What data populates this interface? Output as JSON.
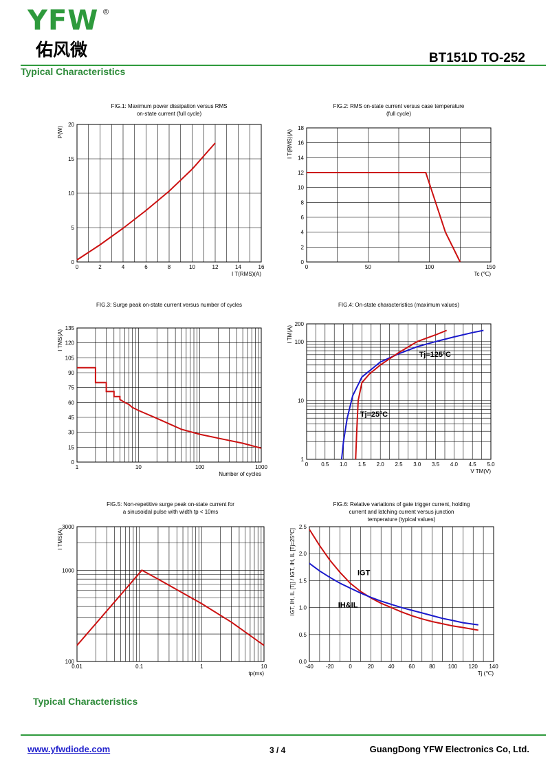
{
  "header": {
    "logo": "YFW",
    "logo_registered": "®",
    "logo_cn": "佑风微",
    "part_number": "BT151D TO-252",
    "section_title": "Typical Characteristics"
  },
  "footer": {
    "section_title": "Typical Characteristics",
    "url": "www.yfwdiode.com",
    "page": "3 / 4",
    "company": "GuangDong YFW Electronics Co, Ltd."
  },
  "colors": {
    "green": "#2e9a3c",
    "red": "#cc1111",
    "blue": "#1a1acc"
  },
  "chart_data": [
    {
      "id": "fig1",
      "type": "line",
      "title": [
        "FIG.1: Maximum power dissipation versus RMS",
        "on-state current (full cycle)"
      ],
      "xlabel": "I T(RMS)(A)",
      "ylabel": "P(W)",
      "xlim": [
        0,
        16
      ],
      "ylim": [
        0,
        20
      ],
      "xticks": [
        0,
        2,
        4,
        6,
        8,
        10,
        12,
        14,
        16
      ],
      "yticks": [
        0,
        5,
        10,
        15,
        20
      ],
      "grid": true,
      "series": [
        {
          "color": "red",
          "x": [
            0,
            2,
            4,
            6,
            8,
            10,
            12
          ],
          "y": [
            0.3,
            2.5,
            4.9,
            7.5,
            10.3,
            13.5,
            17.3
          ]
        }
      ]
    },
    {
      "id": "fig2",
      "type": "line",
      "title": [
        "FIG.2: RMS on-state current versus case temperature",
        "(full cycle)"
      ],
      "xlabel": "Tc (℃)",
      "ylabel": "I T(RMS)(A)",
      "xlim": [
        0,
        150
      ],
      "ylim": [
        0,
        18
      ],
      "xticks": [
        0,
        50,
        100,
        150
      ],
      "yticks": [
        0,
        2,
        4,
        6,
        8,
        10,
        12,
        14,
        16,
        18
      ],
      "grid": true,
      "series": [
        {
          "color": "red",
          "x": [
            0,
            97,
            105,
            113,
            125
          ],
          "y": [
            12,
            12,
            8,
            4,
            0
          ]
        }
      ]
    },
    {
      "id": "fig3",
      "type": "line",
      "title": [
        "FIG.3: Surge peak on-state current versus number of cycles"
      ],
      "xlabel": "Number of cycles",
      "ylabel": "I TMS(A)",
      "xscale": "log",
      "xlim": [
        1,
        1000
      ],
      "ylim": [
        0,
        135
      ],
      "xticks": [
        1,
        10,
        100,
        1000
      ],
      "yticks": [
        0,
        15,
        30,
        45,
        60,
        75,
        90,
        105,
        120,
        135
      ],
      "grid": true,
      "series": [
        {
          "color": "red",
          "x": [
            1,
            2,
            2,
            3,
            3,
            4,
            4,
            5,
            5,
            6,
            7,
            8,
            10,
            20,
            50,
            100,
            200,
            500,
            1000
          ],
          "y": [
            95,
            95,
            80,
            80,
            71,
            71,
            66,
            66,
            63,
            60,
            58,
            55,
            52,
            44,
            33,
            28,
            24,
            19,
            14
          ]
        }
      ]
    },
    {
      "id": "fig4",
      "type": "line",
      "title": [
        "FIG.4: On-state characteristics (maximum values)"
      ],
      "xlabel": "V TM(V)",
      "ylabel": "I TM(A)",
      "yscale": "log",
      "xlim": [
        0,
        5
      ],
      "ylim": [
        1,
        200
      ],
      "xticks": [
        0,
        0.5,
        1.0,
        1.5,
        2.0,
        2.5,
        3.0,
        3.5,
        4.0,
        4.5,
        5.0
      ],
      "xtick_labels": [
        "0",
        "0.5",
        "1.0",
        "1.5",
        "2.0",
        "2.5",
        "3.0",
        "3.5",
        "4.0",
        "4.5",
        "5.0"
      ],
      "yticks": [
        1,
        10,
        100,
        200
      ],
      "grid": true,
      "annotations": [
        {
          "text": "Tj=125ºC",
          "x": 3.05,
          "y": 55
        },
        {
          "text": "Tj=25ºC",
          "x": 1.45,
          "y": 5.3
        }
      ],
      "series": [
        {
          "name": "Tj=125ºC",
          "color": "blue",
          "x": [
            0.95,
            1.0,
            1.1,
            1.25,
            1.5,
            2.0,
            2.5,
            3.0,
            3.5,
            4.0,
            4.5,
            4.8
          ],
          "y": [
            1,
            2,
            5,
            12,
            25,
            45,
            62,
            82,
            100,
            120,
            142,
            155
          ]
        },
        {
          "name": "Tj=25ºC",
          "color": "red",
          "x": [
            1.33,
            1.36,
            1.4,
            1.5,
            1.7,
            2.0,
            2.5,
            3.0,
            3.5,
            3.8
          ],
          "y": [
            1,
            3,
            10,
            20,
            28,
            40,
            65,
            100,
            130,
            155
          ]
        }
      ]
    },
    {
      "id": "fig5",
      "type": "line",
      "title": [
        "FIG.5: Non-repetitive surge peak on-state current for",
        "a sinusoidal pulse with width tp < 10ms"
      ],
      "xlabel": "tp(ms)",
      "ylabel": "I TMS(A)",
      "xscale": "log",
      "yscale": "log",
      "xlim": [
        0.01,
        10
      ],
      "ylim": [
        100,
        3000
      ],
      "xticks": [
        0.01,
        0.1,
        1,
        10
      ],
      "xtick_labels": [
        "0.01",
        "0.1",
        "1",
        "10"
      ],
      "yticks": [
        100,
        1000,
        3000
      ],
      "grid": true,
      "series": [
        {
          "color": "red",
          "x": [
            0.01,
            0.11,
            0.2,
            1,
            3,
            10
          ],
          "y": [
            150,
            1000,
            800,
            430,
            270,
            150
          ]
        }
      ]
    },
    {
      "id": "fig6",
      "type": "line",
      "title": [
        "FIG.6: Relative variations of gate trigger current, holding",
        "current and latching current versus junction",
        "temperature (typical values)"
      ],
      "xlabel": "Tj (℃)",
      "ylabel": "IGT, IH, IL [Tj] / IGT, IH, IL [Tj=25℃]",
      "xlim": [
        -40,
        140
      ],
      "ylim": [
        0,
        2.5
      ],
      "xticks": [
        -40,
        -20,
        0,
        20,
        40,
        60,
        80,
        100,
        120,
        140
      ],
      "yticks": [
        0,
        0.5,
        1.0,
        1.5,
        2.0,
        2.5
      ],
      "ytick_labels": [
        "0.0",
        "0.5",
        "1.0",
        "1.5",
        "2.0",
        "2.5"
      ],
      "grid": true,
      "annotations": [
        {
          "text": "IGT",
          "x": 7,
          "y": 1.6
        },
        {
          "text": "IH&IL",
          "x": -12,
          "y": 1.0
        }
      ],
      "series": [
        {
          "name": "IGT",
          "color": "red",
          "x": [
            -40,
            -30,
            -20,
            -10,
            0,
            10,
            20,
            30,
            40,
            50,
            60,
            70,
            80,
            90,
            100,
            110,
            125
          ],
          "y": [
            2.45,
            2.15,
            1.88,
            1.65,
            1.45,
            1.3,
            1.18,
            1.08,
            1.0,
            0.92,
            0.85,
            0.79,
            0.74,
            0.7,
            0.66,
            0.63,
            0.58
          ]
        },
        {
          "name": "IH&IL",
          "color": "blue",
          "x": [
            -40,
            -30,
            -20,
            -10,
            0,
            10,
            20,
            30,
            40,
            50,
            60,
            70,
            80,
            90,
            100,
            110,
            125
          ],
          "y": [
            1.82,
            1.68,
            1.56,
            1.45,
            1.36,
            1.27,
            1.19,
            1.12,
            1.06,
            1.0,
            0.95,
            0.9,
            0.85,
            0.8,
            0.76,
            0.72,
            0.68
          ]
        }
      ]
    }
  ]
}
